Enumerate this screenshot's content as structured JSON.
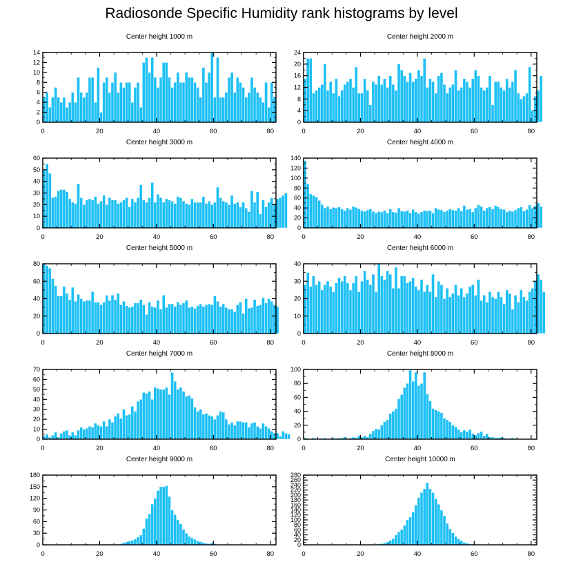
{
  "figure_title": "Radiosonde Specific Humidity rank histograms by level",
  "colors": {
    "bar": "#1ec0f5",
    "bar_edge": "#ffffff",
    "axis": "#000000"
  },
  "chart_data": [
    {
      "type": "bar",
      "title": "Center height 1000 m",
      "xlim": [
        0,
        82
      ],
      "ylim": [
        0,
        14
      ],
      "xticks": [
        0,
        20,
        40,
        60,
        80
      ],
      "yticks": [
        0,
        2,
        4,
        6,
        8,
        10,
        12,
        14
      ],
      "values": [
        5,
        6,
        3,
        5,
        7,
        5,
        4,
        5,
        3,
        4,
        6,
        4,
        9,
        6,
        5,
        6,
        9,
        9,
        4,
        11,
        2,
        8,
        9,
        6,
        8,
        10,
        6,
        8,
        7,
        8,
        8,
        4,
        7,
        8,
        3,
        12,
        13,
        10,
        13,
        9,
        7,
        9,
        12,
        12,
        9,
        7,
        8,
        10,
        8,
        8,
        10,
        9,
        9,
        8,
        7,
        5,
        11,
        8,
        10,
        14,
        5,
        13,
        5,
        5,
        6,
        9,
        10,
        6,
        9,
        8,
        7,
        5,
        6,
        9,
        7,
        6,
        5,
        4,
        8,
        3,
        8,
        5
      ]
    },
    {
      "type": "bar",
      "title": "Center height 2000 m",
      "xlim": [
        0,
        82
      ],
      "ylim": [
        0,
        24
      ],
      "xticks": [
        0,
        20,
        40,
        60,
        80
      ],
      "yticks": [
        0,
        4,
        8,
        12,
        16,
        20,
        24
      ],
      "values": [
        15,
        22,
        22,
        10,
        11,
        12,
        13,
        20,
        11,
        14,
        10,
        15,
        9,
        11,
        13,
        14,
        15,
        12,
        19,
        10,
        10,
        15,
        11,
        6,
        14,
        13,
        16,
        13,
        15,
        12,
        16,
        13,
        11,
        20,
        18,
        16,
        14,
        17,
        14,
        15,
        18,
        16,
        22,
        12,
        15,
        14,
        10,
        16,
        17,
        13,
        10,
        12,
        13,
        18,
        11,
        12,
        15,
        14,
        12,
        15,
        18,
        16,
        12,
        11,
        12,
        16,
        6,
        14,
        14,
        12,
        11,
        15,
        12,
        14,
        18,
        10,
        8,
        9,
        10,
        19,
        4,
        9,
        11,
        16
      ]
    },
    {
      "type": "bar",
      "title": "Center height 3000 m",
      "xlim": [
        0,
        82
      ],
      "ylim": [
        0,
        60
      ],
      "xticks": [
        0,
        20,
        40,
        60,
        80
      ],
      "yticks": [
        0,
        10,
        20,
        30,
        40,
        50,
        60
      ],
      "values": [
        50,
        55,
        47,
        26,
        27,
        32,
        33,
        33,
        31,
        25,
        22,
        21,
        38,
        26,
        20,
        24,
        25,
        24,
        27,
        21,
        23,
        28,
        20,
        26,
        24,
        24,
        21,
        22,
        24,
        26,
        18,
        25,
        22,
        26,
        37,
        24,
        22,
        26,
        39,
        22,
        29,
        26,
        22,
        25,
        24,
        23,
        21,
        27,
        26,
        23,
        21,
        20,
        25,
        22,
        22,
        22,
        27,
        21,
        23,
        20,
        22,
        35,
        26,
        23,
        22,
        20,
        28,
        21,
        22,
        18,
        22,
        17,
        14,
        32,
        22,
        31,
        12,
        24,
        18,
        22,
        26,
        21,
        25,
        26,
        28,
        30
      ]
    },
    {
      "type": "bar",
      "title": "Center height 4000 m",
      "xlim": [
        0,
        82
      ],
      "ylim": [
        0,
        140
      ],
      "xticks": [
        0,
        20,
        40,
        60,
        80
      ],
      "yticks": [
        0,
        20,
        40,
        60,
        80,
        100,
        120,
        140
      ],
      "values": [
        135,
        88,
        68,
        65,
        62,
        55,
        47,
        40,
        43,
        38,
        41,
        40,
        42,
        38,
        35,
        40,
        37,
        43,
        41,
        38,
        35,
        33,
        36,
        38,
        33,
        30,
        33,
        32,
        35,
        30,
        38,
        32,
        31,
        40,
        34,
        33,
        35,
        30,
        37,
        32,
        29,
        32,
        35,
        34,
        35,
        30,
        40,
        37,
        36,
        32,
        35,
        38,
        36,
        35,
        40,
        34,
        45,
        37,
        38,
        32,
        40,
        46,
        43,
        35,
        40,
        42,
        38,
        45,
        42,
        38,
        37,
        32,
        35,
        33,
        36,
        40,
        42,
        34,
        37,
        46,
        39,
        45,
        50,
        43
      ]
    },
    {
      "type": "bar",
      "title": "Center height 5000 m",
      "xlim": [
        0,
        82
      ],
      "ylim": [
        0,
        80
      ],
      "xticks": [
        0,
        20,
        40,
        60,
        80
      ],
      "yticks": [
        0,
        20,
        40,
        60,
        80
      ],
      "values": [
        80,
        78,
        75,
        63,
        55,
        43,
        43,
        54,
        46,
        39,
        53,
        37,
        45,
        40,
        37,
        38,
        38,
        48,
        36,
        36,
        33,
        36,
        44,
        38,
        44,
        39,
        46,
        33,
        37,
        32,
        30,
        31,
        35,
        35,
        39,
        33,
        22,
        36,
        31,
        30,
        38,
        28,
        44,
        30,
        34,
        34,
        31,
        36,
        33,
        35,
        38,
        30,
        31,
        29,
        32,
        34,
        31,
        33,
        34,
        33,
        43,
        37,
        31,
        34,
        30,
        28,
        28,
        25,
        33,
        36,
        23,
        40,
        29,
        30,
        39,
        32,
        33,
        41,
        35,
        40,
        37,
        33,
        31
      ]
    },
    {
      "type": "bar",
      "title": "Center height 6000 m",
      "xlim": [
        0,
        82
      ],
      "ylim": [
        0,
        40
      ],
      "xticks": [
        0,
        20,
        40,
        60,
        80
      ],
      "yticks": [
        0,
        10,
        20,
        30,
        40
      ],
      "values": [
        28,
        35,
        27,
        33,
        28,
        30,
        25,
        28,
        30,
        27,
        24,
        29,
        32,
        30,
        33,
        29,
        25,
        29,
        33,
        24,
        30,
        36,
        31,
        28,
        34,
        24,
        40,
        33,
        31,
        36,
        34,
        26,
        38,
        26,
        33,
        33,
        29,
        30,
        32,
        27,
        25,
        31,
        24,
        28,
        24,
        34,
        21,
        30,
        28,
        20,
        26,
        21,
        23,
        28,
        22,
        26,
        21,
        23,
        27,
        28,
        22,
        31,
        19,
        22,
        18,
        24,
        21,
        20,
        24,
        21,
        17,
        25,
        23,
        14,
        22,
        18,
        25,
        21,
        19,
        24,
        26,
        30,
        34,
        31,
        24
      ]
    },
    {
      "type": "bar",
      "title": "Center height 7000 m",
      "xlim": [
        0,
        82
      ],
      "ylim": [
        0,
        70
      ],
      "xticks": [
        0,
        20,
        40,
        60,
        80
      ],
      "yticks": [
        0,
        10,
        20,
        30,
        40,
        50,
        60,
        70
      ],
      "values": [
        3,
        5,
        2,
        4,
        7,
        2,
        6,
        8,
        9,
        4,
        7,
        4,
        9,
        12,
        10,
        11,
        13,
        12,
        16,
        14,
        13,
        18,
        13,
        20,
        17,
        23,
        26,
        21,
        30,
        24,
        25,
        33,
        28,
        38,
        40,
        47,
        46,
        48,
        40,
        52,
        51,
        50,
        50,
        52,
        45,
        67,
        58,
        50,
        52,
        48,
        43,
        44,
        41,
        32,
        28,
        30,
        25,
        26,
        24,
        23,
        20,
        24,
        28,
        27,
        20,
        15,
        17,
        14,
        18,
        18,
        17,
        17,
        12,
        16,
        17,
        13,
        11,
        16,
        13,
        11,
        8,
        6,
        6,
        3,
        8,
        6,
        5
      ]
    },
    {
      "type": "bar",
      "title": "Center height 8000 m",
      "xlim": [
        0,
        82
      ],
      "ylim": [
        0,
        100
      ],
      "xticks": [
        0,
        20,
        40,
        60,
        80
      ],
      "yticks": [
        0,
        20,
        40,
        60,
        80,
        100
      ],
      "values": [
        2,
        1,
        0,
        2,
        1,
        1,
        1,
        2,
        0,
        1,
        2,
        1,
        2,
        2,
        3,
        1,
        2,
        3,
        2,
        5,
        3,
        5,
        3,
        8,
        12,
        15,
        14,
        20,
        25,
        28,
        37,
        40,
        44,
        58,
        64,
        74,
        80,
        99,
        83,
        96,
        77,
        80,
        96,
        65,
        55,
        44,
        42,
        40,
        38,
        30,
        28,
        25,
        20,
        18,
        14,
        10,
        13,
        11,
        14,
        8,
        6,
        9,
        11,
        5,
        8,
        3,
        3,
        2,
        2,
        3,
        2,
        1,
        1,
        2,
        1,
        0
      ]
    },
    {
      "type": "bar",
      "title": "Center height 9000 m",
      "xlim": [
        0,
        82
      ],
      "ylim": [
        0,
        180
      ],
      "xticks": [
        0,
        20,
        40,
        60,
        80
      ],
      "yticks": [
        0,
        30,
        60,
        90,
        120,
        150,
        180
      ],
      "values": [
        0,
        0,
        0,
        0,
        0,
        0,
        0,
        0,
        0,
        0,
        0,
        0,
        0,
        0,
        0,
        2,
        1,
        0,
        1,
        0,
        0,
        1,
        2,
        1,
        1,
        0,
        2,
        3,
        6,
        8,
        10,
        12,
        15,
        20,
        25,
        42,
        68,
        80,
        105,
        120,
        140,
        150,
        150,
        153,
        125,
        90,
        78,
        65,
        54,
        40,
        30,
        22,
        18,
        14,
        10,
        8,
        6,
        4,
        3,
        5,
        2,
        1,
        1,
        0,
        1,
        0,
        0,
        0,
        0,
        0,
        0,
        0,
        0,
        0,
        0,
        0,
        0,
        0,
        0
      ]
    },
    {
      "type": "bar",
      "title": "Center height 10000 m",
      "xlim": [
        0,
        82
      ],
      "ylim": [
        0,
        280
      ],
      "xticks": [
        0,
        20,
        40,
        60,
        80
      ],
      "yticks": [
        0,
        20,
        40,
        60,
        80,
        100,
        120,
        140,
        160,
        180,
        200,
        220,
        240,
        260,
        280
      ],
      "values": [
        0,
        0,
        0,
        0,
        0,
        0,
        0,
        0,
        0,
        0,
        0,
        0,
        0,
        0,
        0,
        0,
        0,
        0,
        0,
        0,
        0,
        0,
        0,
        0,
        1,
        2,
        3,
        5,
        8,
        12,
        18,
        25,
        40,
        52,
        62,
        78,
        100,
        112,
        132,
        160,
        190,
        210,
        225,
        250,
        225,
        210,
        185,
        163,
        139,
        117,
        86,
        64,
        48,
        34,
        24,
        17,
        10,
        7,
        4,
        3,
        1,
        1,
        0,
        0,
        0,
        0,
        0,
        0,
        0,
        0,
        0,
        0,
        0,
        0,
        0,
        0,
        0,
        0,
        0,
        0
      ]
    }
  ]
}
